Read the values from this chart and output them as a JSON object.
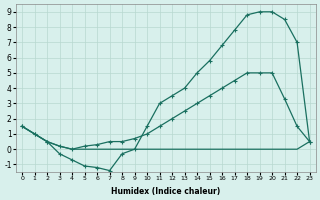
{
  "xlabel": "Humidex (Indice chaleur)",
  "background_color": "#d8f0ec",
  "grid_color": "#b8d8d0",
  "line_color": "#1a7060",
  "xlim": [
    -0.5,
    23.5
  ],
  "ylim": [
    -1.5,
    9.5
  ],
  "xticks": [
    0,
    1,
    2,
    3,
    4,
    5,
    6,
    7,
    8,
    9,
    10,
    11,
    12,
    13,
    14,
    15,
    16,
    17,
    18,
    19,
    20,
    21,
    22,
    23
  ],
  "yticks": [
    -1,
    0,
    1,
    2,
    3,
    4,
    5,
    6,
    7,
    8,
    9
  ],
  "line_peaked": {
    "x": [
      0,
      1,
      2,
      3,
      4,
      5,
      6,
      7,
      8,
      9,
      10,
      11,
      12,
      13,
      14,
      15,
      16,
      17,
      18,
      19,
      20,
      21,
      22,
      23
    ],
    "y": [
      1.5,
      1.0,
      0.5,
      -0.3,
      -0.7,
      -1.1,
      -1.2,
      -1.4,
      -0.3,
      0.0,
      1.5,
      3.0,
      3.5,
      4.0,
      5.0,
      5.8,
      6.8,
      7.8,
      8.8,
      9.0,
      9.0,
      8.5,
      7.0,
      0.5
    ]
  },
  "line_flat": {
    "x": [
      0,
      1,
      2,
      3,
      4,
      5,
      6,
      7,
      8,
      9,
      10,
      11,
      12,
      13,
      14,
      15,
      16,
      17,
      18,
      19,
      20,
      21,
      22,
      23
    ],
    "y": [
      1.5,
      1.0,
      0.5,
      0.2,
      0.0,
      0.0,
      0.0,
      0.0,
      0.0,
      0.0,
      0.0,
      0.0,
      0.0,
      0.0,
      0.0,
      0.0,
      0.0,
      0.0,
      0.0,
      0.0,
      0.0,
      0.0,
      0.0,
      0.5
    ]
  },
  "line_diag": {
    "x": [
      0,
      1,
      2,
      3,
      4,
      5,
      6,
      7,
      8,
      9,
      10,
      11,
      12,
      13,
      14,
      15,
      16,
      17,
      18,
      19,
      20,
      21,
      22,
      23
    ],
    "y": [
      1.5,
      1.0,
      0.5,
      0.2,
      0.0,
      0.2,
      0.3,
      0.5,
      0.5,
      0.7,
      1.0,
      1.5,
      2.0,
      2.5,
      3.0,
      3.5,
      4.0,
      4.5,
      5.0,
      5.0,
      5.0,
      3.3,
      1.5,
      0.5
    ]
  },
  "line_jagged": {
    "x": [
      0,
      1,
      2,
      3,
      4,
      5,
      6,
      7,
      8,
      9
    ],
    "y": [
      1.5,
      1.0,
      0.5,
      -0.3,
      -0.7,
      -1.1,
      -1.2,
      -1.4,
      -0.3,
      0.0
    ]
  }
}
